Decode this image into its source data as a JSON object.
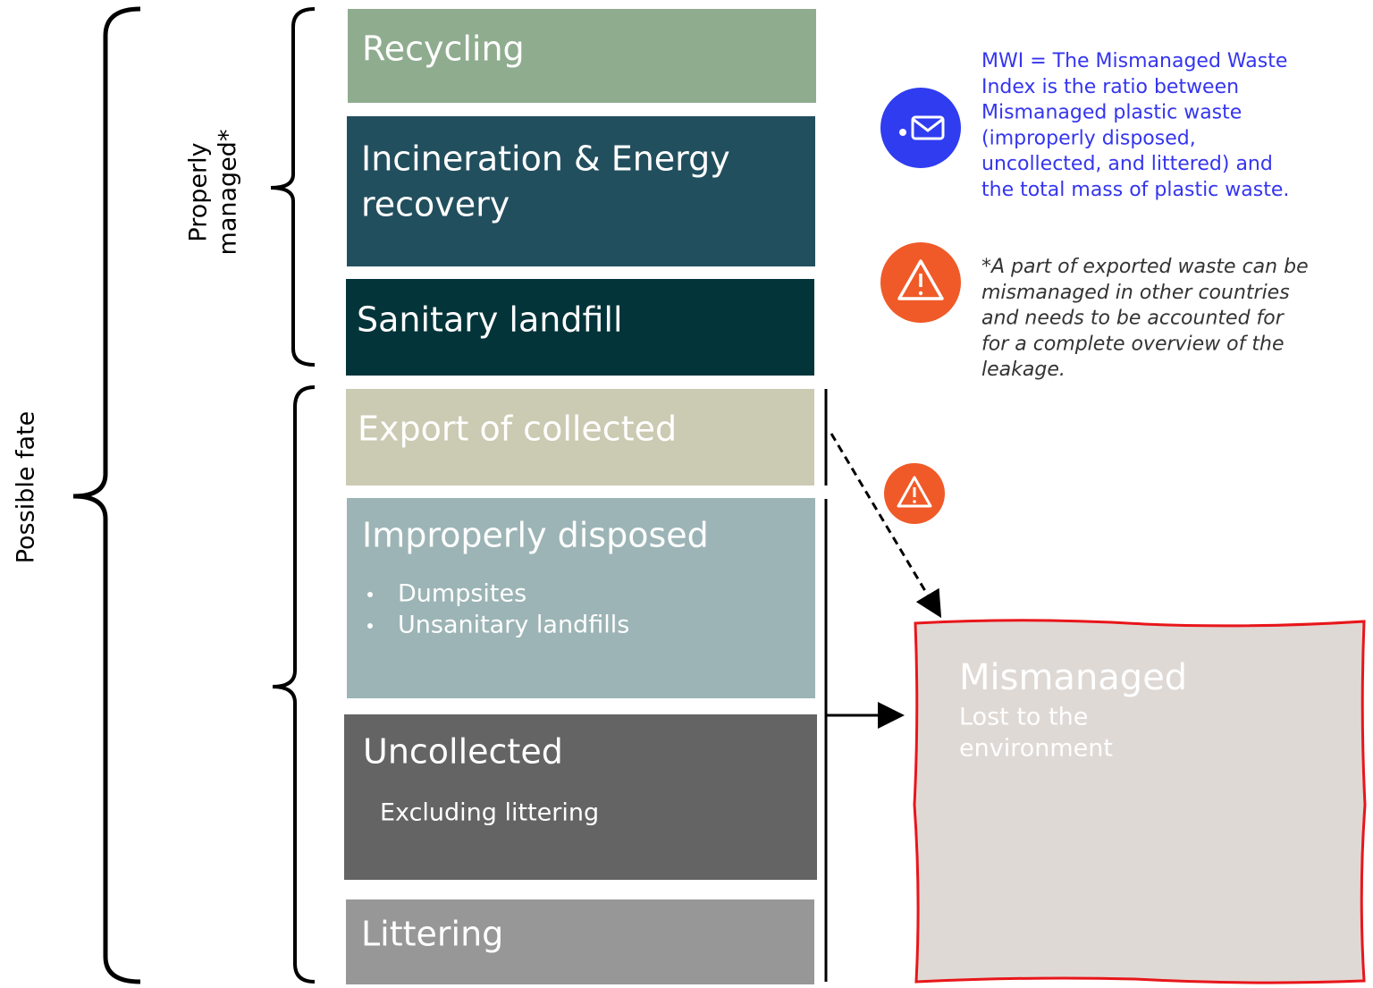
{
  "brackets": {
    "outer": "Possible fate",
    "properly": [
      "Properly",
      "managed*"
    ]
  },
  "boxes": [
    {
      "title": [
        "Recycling"
      ]
    },
    {
      "title": [
        "Incineration & Energy",
        "recovery"
      ]
    },
    {
      "title": [
        "Sanitary landfill"
      ]
    },
    {
      "title": [
        "Export of collected"
      ]
    },
    {
      "title": [
        "Improperly disposed"
      ],
      "bullets": [
        "Dumpsites",
        "Unsanitary landfills"
      ]
    },
    {
      "title": [
        "Uncollected"
      ],
      "subtitle": "Excluding littering"
    },
    {
      "title": [
        "Littering"
      ]
    }
  ],
  "target": {
    "title": "Mismanaged",
    "subtitle": [
      "Lost to the",
      "environment"
    ]
  },
  "notes": [
    {
      "lines": [
        "MWI = The Mismanaged Waste",
        "Index is the ratio between",
        "Mismanaged plastic waste",
        "(improperly disposed,",
        "uncollected, and littered) and",
        "the total mass of plastic waste."
      ]
    },
    {
      "lines": [
        "*A part of exported waste can be",
        "mismanaged in other countries",
        "and needs to be accounted for",
        "for a complete overview of the",
        "leakage."
      ]
    }
  ]
}
